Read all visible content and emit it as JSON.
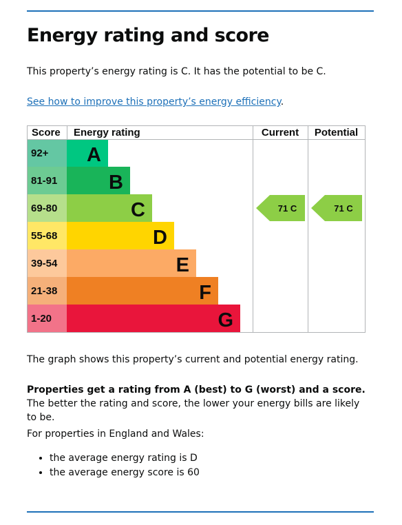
{
  "page": {
    "title": "Energy rating and score",
    "intro": "This property’s energy rating is C. It has the potential to be C.",
    "improve_link": "See how to improve this property’s energy efficiency",
    "improve_link_suffix": ".",
    "graph_caption": "The graph shows this property’s current and potential energy rating.",
    "explain_bold": "Properties get a rating from A (best) to G (worst) and a score.",
    "explain_rest": " The better the rating and score, the lower your energy bills are likely to be.",
    "region_intro": "For properties in England and Wales:",
    "averages": [
      "the average energy rating is D",
      "the average energy score is 60"
    ]
  },
  "chart_data": {
    "type": "bar",
    "headers": {
      "score": "Score",
      "rating": "Energy rating",
      "current": "Current",
      "potential": "Potential"
    },
    "bands": [
      {
        "letter": "A",
        "range": "92+",
        "min": 92,
        "max": 100,
        "color": "#00c781",
        "score_bg": "#64c7a3"
      },
      {
        "letter": "B",
        "range": "81-91",
        "min": 81,
        "max": 91,
        "color": "#19b459",
        "score_bg": "#6dcb93"
      },
      {
        "letter": "C",
        "range": "69-80",
        "min": 69,
        "max": 80,
        "color": "#8dce46",
        "score_bg": "#b6df8b"
      },
      {
        "letter": "D",
        "range": "55-68",
        "min": 55,
        "max": 68,
        "color": "#ffd500",
        "score_bg": "#ffe766"
      },
      {
        "letter": "E",
        "range": "39-54",
        "min": 39,
        "max": 54,
        "color": "#fcaa65",
        "score_bg": "#fdc99c"
      },
      {
        "letter": "F",
        "range": "21-38",
        "min": 21,
        "max": 38,
        "color": "#ef8023",
        "score_bg": "#f5b07a"
      },
      {
        "letter": "G",
        "range": "1-20",
        "min": 1,
        "max": 20,
        "color": "#e9153b",
        "score_bg": "#f27389"
      }
    ],
    "current": {
      "score": 71,
      "rating": "C",
      "label": "71 C",
      "color": "#8dce46"
    },
    "potential": {
      "score": 71,
      "rating": "C",
      "label": "71 C",
      "color": "#8dce46"
    }
  }
}
